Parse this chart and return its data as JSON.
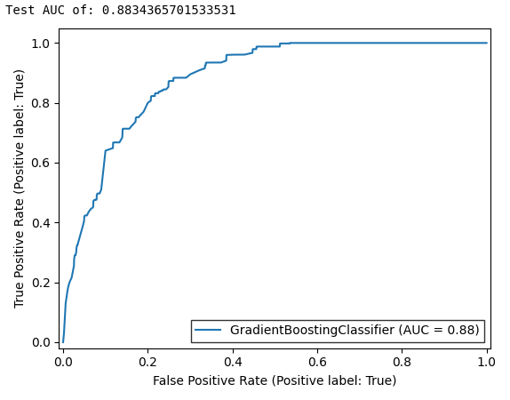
{
  "title": "Test AUC of: 0.8834365701533531",
  "xlabel": "False Positive Rate (Positive label: True)",
  "ylabel": "True Positive Rate (Positive label: True)",
  "auc": 0.8834365701533531,
  "legend_label": "GradientBoostingClassifier (AUC = 0.88)",
  "line_color": "#1f77b4",
  "line_width": 1.5,
  "xlim": [
    -0.01,
    1.01
  ],
  "ylim": [
    -0.02,
    1.05
  ],
  "title_fontsize": 10,
  "label_fontsize": 10,
  "legend_fontsize": 10,
  "legend_loc": "lower right",
  "xticks": [
    0.0,
    0.2,
    0.4,
    0.6,
    0.8,
    1.0
  ],
  "yticks": [
    0.0,
    0.2,
    0.4,
    0.6,
    0.8,
    1.0
  ]
}
